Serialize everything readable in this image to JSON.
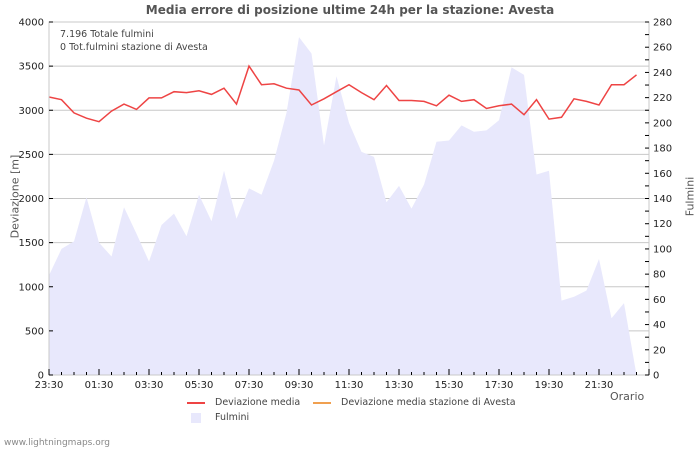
{
  "title": "Media errore di posizione ultime 24h per la stazione: Avesta",
  "info": {
    "total_strikes": "7.196 Totale fulmini",
    "station_strikes": "0 Tot.fulmini stazione di Avesta"
  },
  "axes": {
    "ylabel_left": "Deviazione  [m]",
    "ylabel_right": "Fulmini",
    "xlabel": "Orario"
  },
  "legend": {
    "item1": "Deviazione media",
    "item2": "Deviazione media stazione di Avesta",
    "item3": "Fulmini"
  },
  "footer": "www.lightningmaps.org",
  "colors": {
    "deviation_line": "#ee4444",
    "station_line": "#f0a050",
    "strikes_fill": "#e8e8fc",
    "grid": "#c8c8c8"
  },
  "chart_data": {
    "type": "line",
    "title": "Media errore di posizione ultime 24h per la stazione: Avesta",
    "xlabel": "Orario",
    "ylabel": "Deviazione  [m]",
    "y2label": "Fulmini",
    "ylim": [
      0,
      4000
    ],
    "y2lim": [
      0,
      280
    ],
    "yticks": [
      0,
      500,
      1000,
      1500,
      2000,
      2500,
      3000,
      3500,
      4000
    ],
    "y2ticks": [
      0,
      20,
      40,
      60,
      80,
      100,
      120,
      140,
      160,
      180,
      200,
      220,
      240,
      260,
      280
    ],
    "xtick_labels": [
      "23:30",
      "01:30",
      "03:30",
      "05:30",
      "07:30",
      "09:30",
      "11:30",
      "13:30",
      "15:30",
      "17:30",
      "19:30",
      "21:30"
    ],
    "grid": true,
    "legend_position": "bottom",
    "x": [
      "23:30",
      "00:00",
      "00:30",
      "01:00",
      "01:30",
      "02:00",
      "02:30",
      "03:00",
      "03:30",
      "04:00",
      "04:30",
      "05:00",
      "05:30",
      "06:00",
      "06:30",
      "07:00",
      "07:30",
      "08:00",
      "08:30",
      "09:00",
      "09:30",
      "10:00",
      "10:30",
      "11:00",
      "11:30",
      "12:00",
      "12:30",
      "13:00",
      "13:30",
      "14:00",
      "14:30",
      "15:00",
      "15:30",
      "16:00",
      "16:30",
      "17:00",
      "17:30",
      "18:00",
      "18:30",
      "19:00",
      "19:30",
      "20:00",
      "20:30",
      "21:00",
      "21:30",
      "22:00",
      "22:30",
      "23:00"
    ],
    "series": [
      {
        "name": "Deviazione media",
        "axis": "left",
        "values": [
          3150,
          3120,
          2970,
          2910,
          2870,
          2990,
          3070,
          3010,
          3140,
          3140,
          3210,
          3200,
          3220,
          3180,
          3250,
          3070,
          3500,
          3290,
          3300,
          3250,
          3230,
          3060,
          3130,
          3210,
          3290,
          3200,
          3120,
          3280,
          3110,
          3110,
          3100,
          3050,
          3170,
          3100,
          3120,
          3020,
          3050,
          3070,
          2950,
          3120,
          2900,
          2920,
          3130,
          3100,
          3060,
          3290,
          3290,
          3400
        ]
      },
      {
        "name": "Deviazione media stazione di Avesta",
        "axis": "left",
        "values": []
      },
      {
        "name": "Fulmini",
        "axis": "right",
        "type": "area",
        "values": [
          79,
          100,
          106,
          141,
          105,
          94,
          133,
          112,
          90,
          119,
          128,
          110,
          143,
          122,
          162,
          124,
          148,
          143,
          170,
          208,
          268,
          255,
          182,
          237,
          200,
          177,
          173,
          137,
          150,
          132,
          151,
          185,
          186,
          198,
          193,
          194,
          202,
          244,
          238,
          159,
          162,
          59,
          62,
          67,
          92,
          45,
          57,
          0
        ]
      }
    ]
  }
}
